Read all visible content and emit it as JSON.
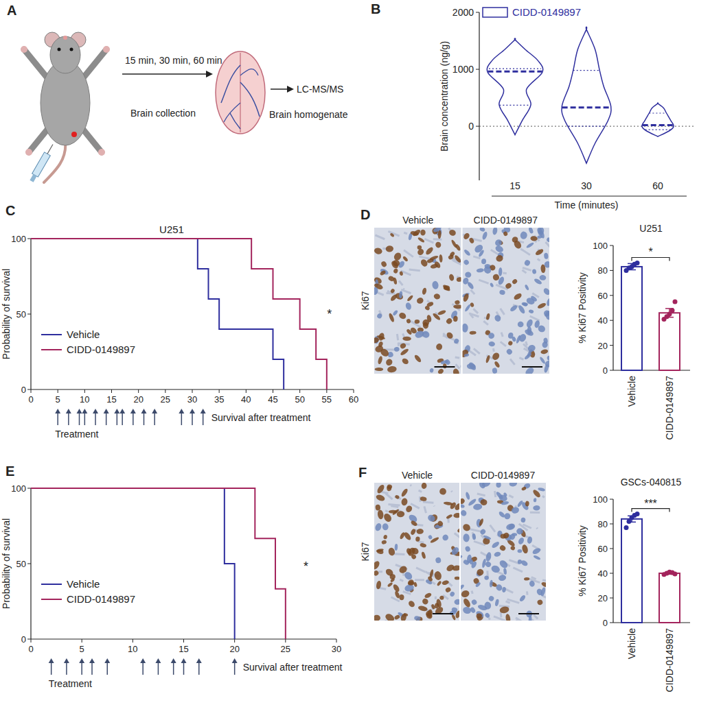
{
  "diagram": {
    "panel": "A",
    "times": "15 min, 30 min, 60 min",
    "step1": "Brain collection",
    "step2": "Brain homogenate",
    "method": "LC-MS/MS"
  },
  "chart_data": [
    {
      "panel": "B",
      "type": "violin",
      "ylabel": "Brain concentration (ng/g)",
      "xlabel": "Time (minutes)",
      "categories": [
        "15",
        "30",
        "60"
      ],
      "series": [
        {
          "name": "CIDD-0149897",
          "color": "#2e2e9e",
          "q1": [
            370,
            0,
            -60
          ],
          "median": [
            960,
            330,
            20
          ],
          "q3": [
            1010,
            980,
            230
          ],
          "density": [
            [
              [
                -150,
                0
              ],
              [
                100,
                0.25
              ],
              [
                380,
                0.55
              ],
              [
                650,
                0.4
              ],
              [
                950,
                0.95
              ],
              [
                1150,
                0.8
              ],
              [
                1350,
                0.35
              ],
              [
                1520,
                0
              ]
            ],
            [
              [
                -650,
                0
              ],
              [
                -300,
                0.3
              ],
              [
                100,
                0.75
              ],
              [
                350,
                0.85
              ],
              [
                700,
                0.6
              ],
              [
                1000,
                0.45
              ],
              [
                1350,
                0.3
              ],
              [
                1700,
                0
              ]
            ],
            [
              [
                -180,
                0
              ],
              [
                -80,
                0.4
              ],
              [
                0,
                0.55
              ],
              [
                100,
                0.45
              ],
              [
                230,
                0.3
              ],
              [
                320,
                0.2
              ],
              [
                400,
                0
              ]
            ]
          ]
        }
      ],
      "ylim": [
        -950,
        2000
      ],
      "yticks": [
        0,
        1000,
        2000
      ],
      "reference_line": 0,
      "legend": "upper left"
    },
    {
      "panel": "C",
      "type": "step",
      "title": "U251",
      "ylabel": "Probability of survival",
      "xlim": [
        0,
        60
      ],
      "xticks": [
        0,
        5,
        10,
        15,
        20,
        25,
        30,
        35,
        40,
        45,
        50,
        55,
        60
      ],
      "ylim": [
        0,
        100
      ],
      "yticks": [
        0,
        50,
        100
      ],
      "legend": "lower left",
      "series": [
        {
          "name": "Vehicle",
          "color": "#2e2e9e",
          "x": [
            0,
            31,
            33,
            35,
            45,
            47
          ],
          "values": [
            100,
            80,
            60,
            40,
            20,
            0
          ]
        },
        {
          "name": "CIDD-0149897",
          "color": "#a3245c",
          "x": [
            0,
            41,
            45,
            50,
            53,
            55
          ],
          "values": [
            100,
            80,
            60,
            40,
            20,
            0
          ]
        }
      ],
      "treatment_days": [
        5,
        7,
        9,
        10,
        12,
        14,
        16,
        17,
        19,
        21,
        23,
        28,
        30,
        32
      ],
      "treatment_label": "Treatment",
      "post_label": "Survival after treatment",
      "annotations": [
        {
          "text": "*",
          "x": 55.5,
          "y": 50
        }
      ]
    },
    {
      "panel": "D",
      "type": "bar",
      "title": "U251",
      "ylabel": "% Ki67 Positivity",
      "categories": [
        "Vehicle",
        "CIDD-0149897"
      ],
      "values": [
        83,
        46
      ],
      "errors": [
        2.5,
        3.5
      ],
      "points": [
        [
          80,
          82,
          83,
          85,
          86
        ],
        [
          41,
          43,
          45,
          48,
          55
        ]
      ],
      "colors": [
        "#2e2e9e",
        "#a3245c"
      ],
      "ylim": [
        0,
        100
      ],
      "yticks": [
        0,
        20,
        40,
        60,
        80,
        100
      ],
      "significance": "*",
      "images": {
        "stain": "Ki67",
        "labels": [
          "Vehicle",
          "CIDD-0149897"
        ]
      }
    },
    {
      "panel": "E",
      "type": "step",
      "ylabel": "Probability of survival",
      "xlim": [
        0,
        30
      ],
      "xticks": [
        0,
        5,
        10,
        15,
        20,
        25,
        30
      ],
      "ylim": [
        0,
        100
      ],
      "yticks": [
        0,
        50,
        100
      ],
      "legend": "lower left",
      "series": [
        {
          "name": "Vehicle",
          "color": "#2e2e9e",
          "x": [
            0,
            19,
            20
          ],
          "values": [
            100,
            50,
            0
          ]
        },
        {
          "name": "CIDD-0149897",
          "color": "#a3245c",
          "x": [
            0,
            22,
            24,
            25
          ],
          "values": [
            100,
            66.7,
            33.3,
            0
          ]
        }
      ],
      "treatment_days": [
        2,
        3.5,
        5,
        6,
        7.5,
        11,
        12.5,
        14,
        15,
        16.5,
        20
      ],
      "treatment_label": "Treatment",
      "post_label": "Survival after treatment",
      "annotations": [
        {
          "text": "*",
          "x": 27,
          "y": 48
        }
      ]
    },
    {
      "panel": "F",
      "type": "bar",
      "title": "GSCs-040815",
      "ylabel": "% Ki67 Positivity",
      "categories": [
        "Vehicle",
        "CIDD-0149897"
      ],
      "values": [
        84,
        40
      ],
      "errors": [
        2.5,
        0.8
      ],
      "points": [
        [
          77,
          82,
          85,
          87,
          88
        ],
        [
          39,
          40,
          41,
          40.5,
          39.5
        ]
      ],
      "colors": [
        "#2e2e9e",
        "#a3245c"
      ],
      "ylim": [
        0,
        100
      ],
      "yticks": [
        0,
        20,
        40,
        60,
        80,
        100
      ],
      "significance": "***",
      "images": {
        "stain": "Ki67",
        "labels": [
          "Vehicle",
          "CIDD-0149897"
        ]
      }
    }
  ]
}
